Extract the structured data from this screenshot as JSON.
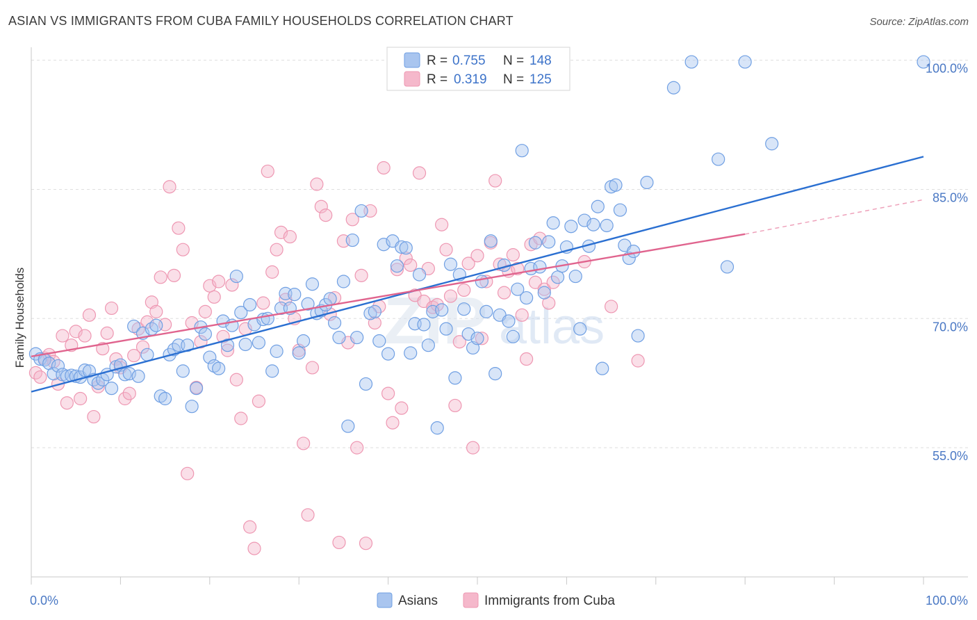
{
  "header": {
    "title": "ASIAN VS IMMIGRANTS FROM CUBA FAMILY HOUSEHOLDS CORRELATION CHART",
    "source": "Source: ZipAtlas.com"
  },
  "watermark": {
    "zip": "ZIP",
    "atlas": "atlas"
  },
  "legend": {
    "rows": [
      {
        "r_label": "R =",
        "r_value": "0.755",
        "n_label": "N =",
        "n_value": "148",
        "color": "#a9c5ef"
      },
      {
        "r_label": "R =",
        "r_value": "0.319",
        "n_label": "N =",
        "n_value": "125",
        "color": "#f5b8cb"
      }
    ]
  },
  "bottom_legend": {
    "items": [
      {
        "label": "Asians",
        "color": "#a9c5ef"
      },
      {
        "label": "Immigrants from Cuba",
        "color": "#f5b8cb"
      }
    ]
  },
  "chart_data": {
    "type": "scatter",
    "title": "ASIAN VS IMMIGRANTS FROM CUBA FAMILY HOUSEHOLDS CORRELATION CHART",
    "xlabel": "",
    "ylabel": "Family Households",
    "xlim": [
      0,
      100
    ],
    "ylim": [
      40,
      101.5
    ],
    "x_tick_labels": [
      "0.0%",
      "100.0%"
    ],
    "y_ticks": [
      55,
      70,
      85,
      100
    ],
    "y_tick_labels": [
      "55.0%",
      "70.0%",
      "85.0%",
      "100.0%"
    ],
    "grid": true,
    "legend_position": "top-center",
    "series": [
      {
        "name": "Asians",
        "color": "#6f9fe3",
        "fill": "#a9c5ef",
        "trend": {
          "x": [
            0,
            100
          ],
          "y": [
            61.5,
            88.8
          ]
        },
        "points": [
          [
            0.5,
            65.9
          ],
          [
            1,
            65.3
          ],
          [
            1.5,
            65.2
          ],
          [
            2,
            64.8
          ],
          [
            2.5,
            63.6
          ],
          [
            3,
            64.5
          ],
          [
            3.5,
            63.5
          ],
          [
            4,
            63.3
          ],
          [
            4.5,
            63.4
          ],
          [
            5,
            63.3
          ],
          [
            5.5,
            63.2
          ],
          [
            6,
            64.0
          ],
          [
            6.5,
            63.9
          ],
          [
            7,
            62.9
          ],
          [
            7.5,
            62.5
          ],
          [
            8,
            62.9
          ],
          [
            8.5,
            63.5
          ],
          [
            9,
            61.9
          ],
          [
            9.5,
            64.4
          ],
          [
            10,
            64.6
          ],
          [
            10.5,
            63.5
          ],
          [
            11,
            63.6
          ],
          [
            11.5,
            69.1
          ],
          [
            12,
            63.3
          ],
          [
            12.5,
            68.3
          ],
          [
            13,
            65.8
          ],
          [
            13.5,
            68.8
          ],
          [
            14,
            69.2
          ],
          [
            14.5,
            61.0
          ],
          [
            15,
            60.7
          ],
          [
            15.5,
            65.8
          ],
          [
            16,
            66.4
          ],
          [
            16.5,
            66.9
          ],
          [
            17,
            63.9
          ],
          [
            17.5,
            66.9
          ],
          [
            18,
            59.8
          ],
          [
            18.5,
            61.9
          ],
          [
            19,
            69.0
          ],
          [
            19.5,
            68.2
          ],
          [
            20,
            65.5
          ],
          [
            20.5,
            64.5
          ],
          [
            21,
            64.2
          ],
          [
            21.5,
            69.7
          ],
          [
            22,
            66.9
          ],
          [
            22.5,
            69.2
          ],
          [
            23,
            74.9
          ],
          [
            23.5,
            70.7
          ],
          [
            24,
            67.0
          ],
          [
            24.5,
            71.6
          ],
          [
            25,
            69.3
          ],
          [
            25.5,
            67.2
          ],
          [
            26,
            69.9
          ],
          [
            26.5,
            70.0
          ],
          [
            27,
            63.9
          ],
          [
            27.5,
            66.2
          ],
          [
            28,
            71.2
          ],
          [
            28.5,
            72.9
          ],
          [
            29,
            71.2
          ],
          [
            29.5,
            72.8
          ],
          [
            30,
            66.0
          ],
          [
            30.5,
            67.4
          ],
          [
            31,
            71.7
          ],
          [
            31.5,
            74.0
          ],
          [
            32,
            70.6
          ],
          [
            32.5,
            70.9
          ],
          [
            33,
            71.6
          ],
          [
            33.5,
            72.3
          ],
          [
            34,
            69.5
          ],
          [
            34.5,
            67.8
          ],
          [
            35,
            74.3
          ],
          [
            35.5,
            57.5
          ],
          [
            36,
            79.1
          ],
          [
            36.5,
            67.8
          ],
          [
            37,
            82.5
          ],
          [
            37.5,
            62.4
          ],
          [
            38,
            70.6
          ],
          [
            38.5,
            70.8
          ],
          [
            39,
            67.4
          ],
          [
            39.5,
            78.6
          ],
          [
            40,
            65.9
          ],
          [
            40.5,
            79.0
          ],
          [
            41,
            76.1
          ],
          [
            41.5,
            78.3
          ],
          [
            42,
            78.2
          ],
          [
            42.5,
            66.0
          ],
          [
            43,
            69.4
          ],
          [
            43.5,
            75.1
          ],
          [
            44,
            69.3
          ],
          [
            44.5,
            66.9
          ],
          [
            45,
            70.8
          ],
          [
            45.5,
            57.3
          ],
          [
            46,
            71.0
          ],
          [
            46.5,
            68.8
          ],
          [
            47,
            76.3
          ],
          [
            47.5,
            63.1
          ],
          [
            48,
            75.1
          ],
          [
            48.5,
            71.1
          ],
          [
            49,
            68.2
          ],
          [
            49.5,
            66.6
          ],
          [
            50,
            67.7
          ],
          [
            50.5,
            74.3
          ],
          [
            51,
            70.8
          ],
          [
            51.5,
            79.0
          ],
          [
            52,
            63.6
          ],
          [
            52.5,
            70.4
          ],
          [
            53,
            76.2
          ],
          [
            53.5,
            69.7
          ],
          [
            54,
            67.9
          ],
          [
            54.5,
            73.4
          ],
          [
            55,
            89.5
          ],
          [
            55.5,
            72.4
          ],
          [
            56,
            75.8
          ],
          [
            56.5,
            78.8
          ],
          [
            57,
            76.0
          ],
          [
            57.5,
            73.0
          ],
          [
            58,
            78.9
          ],
          [
            58.5,
            81.1
          ],
          [
            59,
            74.8
          ],
          [
            59.5,
            76.1
          ],
          [
            60,
            78.3
          ],
          [
            60.5,
            80.7
          ],
          [
            61,
            74.9
          ],
          [
            61.5,
            68.8
          ],
          [
            62,
            81.4
          ],
          [
            62.5,
            78.4
          ],
          [
            63,
            80.9
          ],
          [
            63.5,
            83.0
          ],
          [
            64,
            64.2
          ],
          [
            64.5,
            80.8
          ],
          [
            65,
            85.3
          ],
          [
            65.5,
            85.5
          ],
          [
            66,
            82.6
          ],
          [
            66.5,
            78.5
          ],
          [
            67,
            77.0
          ],
          [
            67.5,
            77.8
          ],
          [
            68,
            68.0
          ],
          [
            69,
            85.8
          ],
          [
            72,
            96.8
          ],
          [
            74,
            99.8
          ],
          [
            77,
            88.5
          ],
          [
            78,
            76.0
          ],
          [
            80,
            99.8
          ],
          [
            83,
            90.3
          ],
          [
            100,
            99.8
          ]
        ]
      },
      {
        "name": "Immigrants from Cuba",
        "color": "#ee97b2",
        "fill": "#f5b8cb",
        "trend": {
          "x": [
            0,
            80
          ],
          "y": [
            65.6,
            79.8
          ]
        },
        "trend_dashed": {
          "x": [
            80,
            100
          ],
          "y": [
            79.8,
            83.8
          ]
        },
        "points": [
          [
            0.5,
            63.7
          ],
          [
            1,
            63.2
          ],
          [
            1.5,
            65.4
          ],
          [
            2,
            65.8
          ],
          [
            2.5,
            65.0
          ],
          [
            3,
            62.4
          ],
          [
            3.5,
            68.0
          ],
          [
            4,
            60.2
          ],
          [
            4.5,
            66.9
          ],
          [
            5,
            68.5
          ],
          [
            5.5,
            60.7
          ],
          [
            6,
            68.0
          ],
          [
            6.5,
            70.4
          ],
          [
            7,
            58.6
          ],
          [
            7.5,
            62.1
          ],
          [
            8,
            66.5
          ],
          [
            8.5,
            68.3
          ],
          [
            9,
            71.2
          ],
          [
            9.5,
            65.3
          ],
          [
            10,
            64.3
          ],
          [
            10.5,
            60.7
          ],
          [
            11,
            61.3
          ],
          [
            11.5,
            65.7
          ],
          [
            12,
            68.8
          ],
          [
            12.5,
            66.7
          ],
          [
            13,
            69.6
          ],
          [
            13.5,
            71.9
          ],
          [
            14,
            70.8
          ],
          [
            14.5,
            74.8
          ],
          [
            15,
            69.3
          ],
          [
            15.5,
            85.3
          ],
          [
            16,
            75.0
          ],
          [
            16.5,
            80.5
          ],
          [
            17,
            78.0
          ],
          [
            17.5,
            52.0
          ],
          [
            18,
            69.5
          ],
          [
            18.5,
            62.0
          ],
          [
            19,
            67.3
          ],
          [
            19.5,
            70.8
          ],
          [
            20,
            73.8
          ],
          [
            20.5,
            72.5
          ],
          [
            21,
            74.3
          ],
          [
            21.5,
            67.9
          ],
          [
            22,
            66.3
          ],
          [
            22.5,
            73.9
          ],
          [
            23,
            62.9
          ],
          [
            23.5,
            58.4
          ],
          [
            24,
            68.8
          ],
          [
            24.5,
            45.8
          ],
          [
            25,
            43.3
          ],
          [
            25.5,
            60.4
          ],
          [
            26,
            71.8
          ],
          [
            26.5,
            87.1
          ],
          [
            27,
            75.4
          ],
          [
            27.5,
            78.0
          ],
          [
            28,
            80.0
          ],
          [
            28.5,
            72.2
          ],
          [
            29,
            79.5
          ],
          [
            29.5,
            70.0
          ],
          [
            30,
            66.3
          ],
          [
            30.5,
            55.5
          ],
          [
            31,
            47.2
          ],
          [
            31.5,
            64.3
          ],
          [
            32,
            85.6
          ],
          [
            32.5,
            83.0
          ],
          [
            33,
            82.0
          ],
          [
            33.5,
            70.5
          ],
          [
            34,
            72.4
          ],
          [
            34.5,
            44.0
          ],
          [
            35,
            79.0
          ],
          [
            35.5,
            67.2
          ],
          [
            36,
            81.5
          ],
          [
            36.5,
            55.0
          ],
          [
            37,
            75.0
          ],
          [
            37.5,
            43.9
          ],
          [
            38,
            82.5
          ],
          [
            38.5,
            69.5
          ],
          [
            39,
            71.4
          ],
          [
            39.5,
            87.5
          ],
          [
            40,
            61.3
          ],
          [
            40.5,
            57.9
          ],
          [
            41,
            75.7
          ],
          [
            41.5,
            59.6
          ],
          [
            42,
            77.0
          ],
          [
            42.5,
            76.2
          ],
          [
            43,
            72.7
          ],
          [
            43.5,
            86.9
          ],
          [
            44,
            72.0
          ],
          [
            44.5,
            75.8
          ],
          [
            45,
            71.3
          ],
          [
            45.5,
            71.6
          ],
          [
            46,
            80.9
          ],
          [
            46.5,
            78.0
          ],
          [
            47,
            72.6
          ],
          [
            47.5,
            59.9
          ],
          [
            48,
            67.3
          ],
          [
            48.5,
            73.3
          ],
          [
            49,
            76.4
          ],
          [
            49.5,
            55.0
          ],
          [
            50,
            77.3
          ],
          [
            50.5,
            67.7
          ],
          [
            51,
            74.3
          ],
          [
            51.5,
            78.8
          ],
          [
            52,
            86.0
          ],
          [
            52.5,
            76.3
          ],
          [
            53,
            73.0
          ],
          [
            53.5,
            75.5
          ],
          [
            54,
            77.4
          ],
          [
            54.5,
            75.8
          ],
          [
            55,
            70.4
          ],
          [
            55.5,
            65.3
          ],
          [
            56,
            78.6
          ],
          [
            56.5,
            74.2
          ],
          [
            57,
            79.3
          ],
          [
            57.5,
            73.4
          ],
          [
            58,
            71.8
          ],
          [
            58.5,
            74.2
          ],
          [
            62,
            76.6
          ],
          [
            65,
            71.4
          ],
          [
            68,
            65.1
          ]
        ]
      }
    ]
  }
}
